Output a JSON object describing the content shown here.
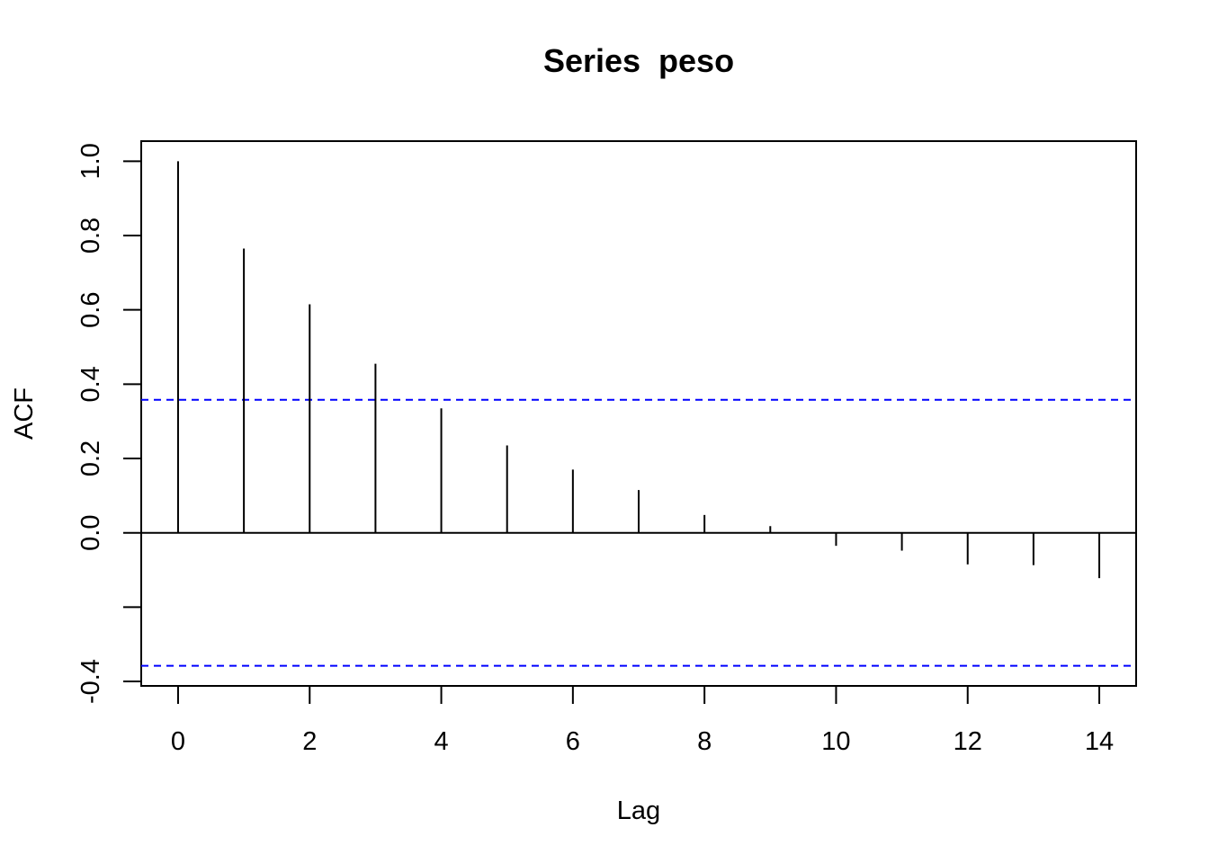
{
  "chart_data": {
    "type": "bar",
    "title": "Series  peso",
    "xlabel": "Lag",
    "ylabel": "ACF",
    "xlim": [
      -0.56,
      14.56
    ],
    "ylim": [
      -0.412,
      1.054
    ],
    "x_ticks": [
      0,
      2,
      4,
      6,
      8,
      10,
      12,
      14
    ],
    "x_tick_labels": [
      "0",
      "2",
      "4",
      "6",
      "8",
      "10",
      "12",
      "14"
    ],
    "y_ticks": [
      -0.4,
      -0.2,
      0.0,
      0.2,
      0.4,
      0.6,
      0.8,
      1.0
    ],
    "y_tick_labels": [
      "-0.4",
      "",
      "0.0",
      "0.2",
      "0.4",
      "0.6",
      "0.8",
      "1.0"
    ],
    "lags": [
      0,
      1,
      2,
      3,
      4,
      5,
      6,
      7,
      8,
      9,
      10,
      11,
      12,
      13,
      14
    ],
    "acf": [
      1.0,
      0.765,
      0.615,
      0.455,
      0.335,
      0.235,
      0.17,
      0.115,
      0.048,
      0.018,
      -0.035,
      -0.048,
      -0.085,
      -0.087,
      -0.122
    ],
    "confidence_bound": 0.358,
    "confidence_color": "#0000ff",
    "grid": false
  }
}
